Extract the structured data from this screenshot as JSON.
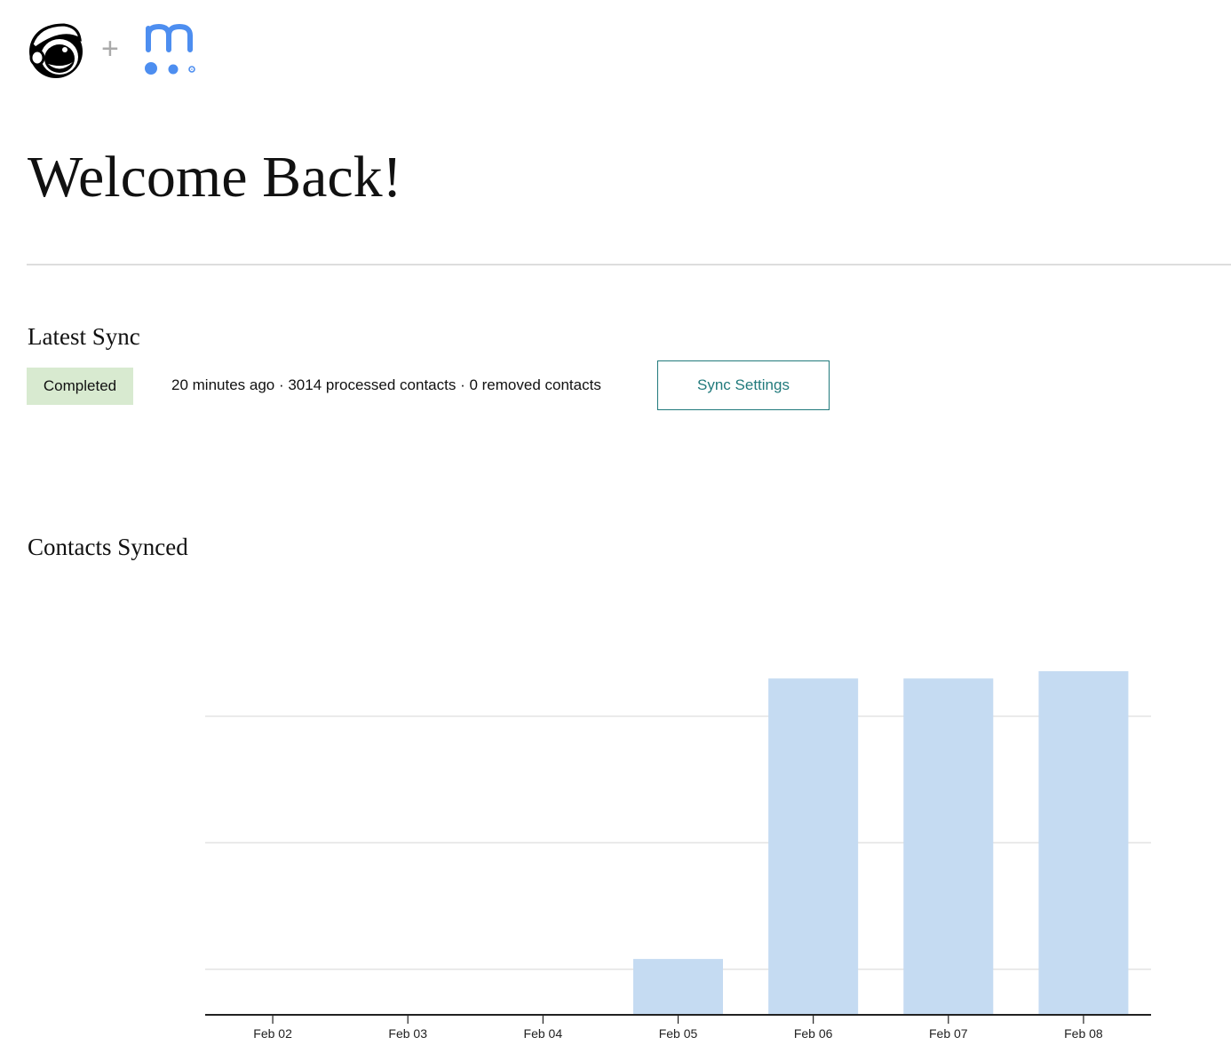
{
  "header": {
    "logos": [
      {
        "name": "mailchimp-logo"
      },
      {
        "name": "plus-sign",
        "text": "+"
      },
      {
        "name": "meetup-style-m-logo"
      }
    ],
    "brand_color": "#4d8ef0"
  },
  "title": "Welcome Back!",
  "latest_sync": {
    "heading": "Latest Sync",
    "status": "Completed",
    "status_color": "#d8ead0",
    "info": "20 minutes ago · 3014 processed contacts · 0 removed contacts",
    "button": "Sync Settings",
    "button_color": "#217a7c"
  },
  "contacts_heading": "Contacts Synced",
  "chart_data": {
    "type": "bar",
    "title": "",
    "xlabel": "",
    "ylabel": "",
    "categories": [
      "Feb 02",
      "Feb 03",
      "Feb 04",
      "Feb 05",
      "Feb 06",
      "Feb 07",
      "Feb 08"
    ],
    "values": [
      0,
      0,
      0,
      490,
      2950,
      2950,
      3014
    ],
    "ylim": [
      0,
      3450
    ],
    "y_gridlines": [
      400,
      1510,
      2620
    ],
    "y_tick_labels_shown": false,
    "grid": true,
    "bar_color": "#c5dbf2"
  }
}
